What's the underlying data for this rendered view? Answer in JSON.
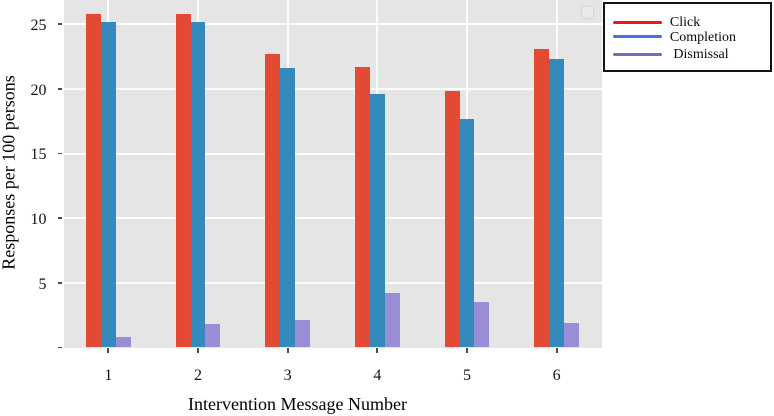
{
  "chart_data": {
    "type": "bar",
    "title": "",
    "xlabel": "Intervention Message Number",
    "ylabel": "Responses per 100 persons",
    "categories": [
      "1",
      "2",
      "3",
      "4",
      "5",
      "6"
    ],
    "series": [
      {
        "name": "Click",
        "bar_color": "#E24A33",
        "legend_swatch_color": "#ED1515",
        "values": [
          25.8,
          25.8,
          22.7,
          21.7,
          19.8,
          23.1
        ]
      },
      {
        "name": "Completion",
        "bar_color": "#348ABD",
        "legend_swatch_color": "#4470E0",
        "values": [
          25.2,
          25.2,
          21.6,
          19.6,
          17.7,
          22.3
        ]
      },
      {
        "name": "Dismissal",
        "bar_color": "#988ED5",
        "legend_swatch_color": "#7C68B6",
        "values": [
          0.8,
          1.8,
          2.1,
          4.2,
          3.5,
          1.9
        ]
      }
    ],
    "legend_labels": [
      "Click",
      "Completion",
      " Dismissal"
    ],
    "y_ticks": [
      5,
      10,
      15,
      20,
      25
    ],
    "ylim": [
      0,
      26.9
    ],
    "grid": true,
    "legend_position": "outside-top-right",
    "plot_background_color": "#E5E5E5",
    "gridline_color": "#FBFBFB",
    "bar_layout": "grouped"
  }
}
